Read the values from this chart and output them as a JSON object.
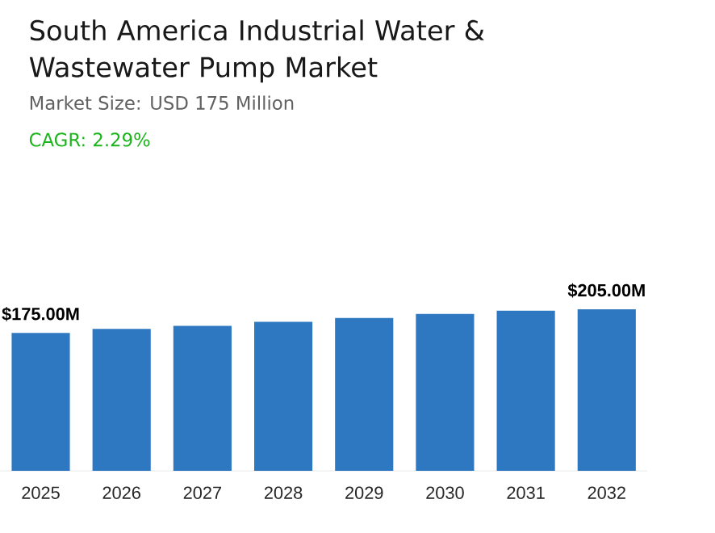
{
  "chart_data": {
    "type": "bar",
    "title": "South America Industrial Water & Wastewater Pump Market",
    "subtitle": "Market Size: USD 175 Million",
    "annotations": [
      "CAGR: 2.29%"
    ],
    "categories": [
      "2025",
      "2026",
      "2027",
      "2028",
      "2029",
      "2030",
      "2031",
      "2032"
    ],
    "values": [
      175,
      180,
      184,
      189,
      194,
      199,
      203,
      205
    ],
    "value_labels": [
      "$175.00M",
      null,
      null,
      null,
      null,
      null,
      null,
      "$205.00M"
    ],
    "color": "#2e78c2"
  }
}
